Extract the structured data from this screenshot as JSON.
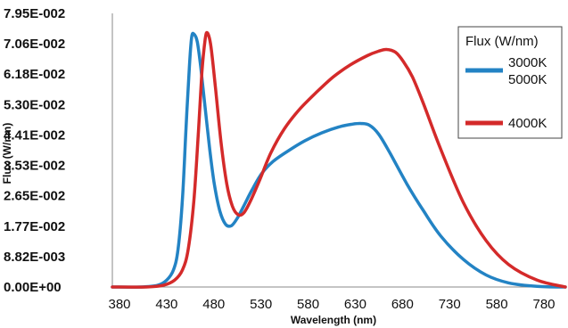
{
  "chart_data": {
    "type": "line",
    "xlabel": "Wavelength (nm)",
    "ylabel": "Flux (W/nm)",
    "y_ticks": [
      "0.00E+00",
      "8.82E-003",
      "1.77E-002",
      "2.65E-002",
      "3.53E-002",
      "4.41E-002",
      "5.30E-002",
      "6.18E-002",
      "7.06E-002",
      "7.95E-002"
    ],
    "x_ticks": [
      "380",
      "430",
      "480",
      "530",
      "580",
      "630",
      "680",
      "730",
      "580",
      "780"
    ],
    "ylim": [
      0,
      0.0795
    ],
    "xlim": [
      380,
      780
    ],
    "grid": false,
    "legend": {
      "title": "Flux (W/nm)",
      "position": "top-right",
      "entries": [
        {
          "labels": [
            "3000K",
            "5000K"
          ],
          "color": "#2383c4"
        },
        {
          "labels": [
            "4000K"
          ],
          "color": "#d42a2a"
        }
      ]
    },
    "series": [
      {
        "color": "#2383c4",
        "x": [
          380,
          405,
          420,
          428,
          434,
          438,
          442,
          445,
          448,
          450,
          452,
          455,
          458,
          462,
          466,
          470,
          475,
          480,
          485,
          490,
          496,
          503,
          512,
          522,
          535,
          550,
          565,
          580,
          592,
          600,
          607,
          615,
          625,
          640,
          655,
          670,
          690,
          710,
          730,
          755,
          780
        ],
        "y": [
          0.0,
          0.0,
          0.0005,
          0.002,
          0.005,
          0.011,
          0.026,
          0.046,
          0.064,
          0.0725,
          0.0735,
          0.0712,
          0.064,
          0.052,
          0.04,
          0.03,
          0.022,
          0.0182,
          0.0178,
          0.0198,
          0.0235,
          0.028,
          0.033,
          0.0365,
          0.0395,
          0.0425,
          0.0448,
          0.0465,
          0.0473,
          0.0475,
          0.047,
          0.0445,
          0.039,
          0.03,
          0.022,
          0.0148,
          0.008,
          0.0035,
          0.0012,
          0.0002,
          0.0
        ]
      },
      {
        "color": "#d42a2a",
        "x": [
          380,
          410,
          425,
          435,
          442,
          447,
          452,
          456,
          459,
          462,
          464,
          467,
          471,
          476,
          481,
          486,
          491,
          496,
          502,
          510,
          520,
          532,
          545,
          560,
          575,
          590,
          605,
          615,
          622,
          630,
          637,
          645,
          655,
          670,
          690,
          710,
          730,
          755,
          780
        ],
        "y": [
          0.0,
          0.0,
          0.0005,
          0.002,
          0.005,
          0.011,
          0.025,
          0.045,
          0.062,
          0.072,
          0.0738,
          0.07,
          0.058,
          0.042,
          0.03,
          0.0235,
          0.021,
          0.0215,
          0.025,
          0.031,
          0.039,
          0.046,
          0.0515,
          0.0565,
          0.061,
          0.0645,
          0.0672,
          0.0685,
          0.069,
          0.0682,
          0.0655,
          0.061,
          0.053,
          0.04,
          0.0245,
          0.0135,
          0.0065,
          0.002,
          0.0
        ]
      }
    ]
  }
}
